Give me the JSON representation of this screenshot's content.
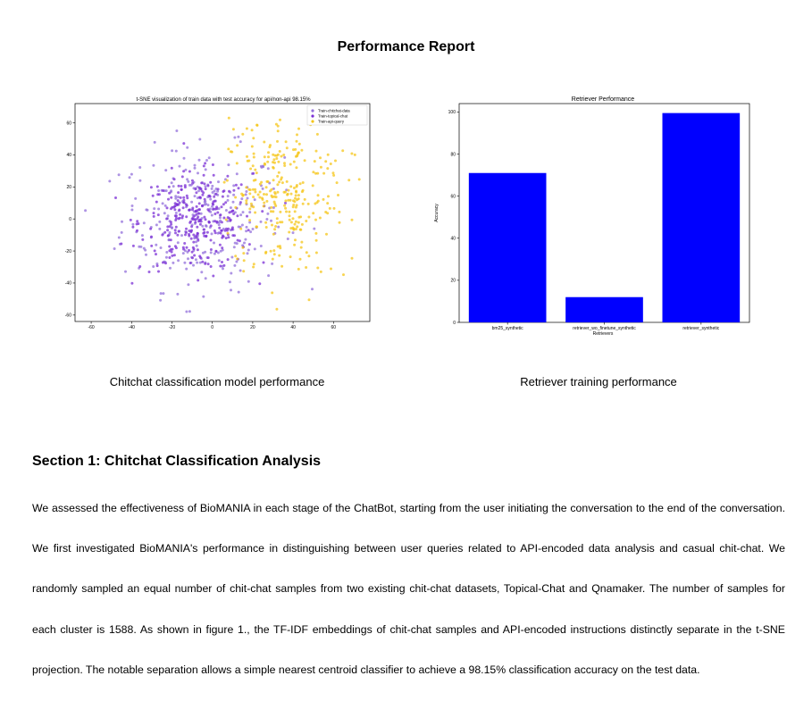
{
  "report": {
    "title": "Performance Report",
    "captions": {
      "left": "Chitchat classification model performance",
      "right": "Retriever training performance"
    },
    "section": {
      "heading": "Section 1: Chitchat Classification Analysis",
      "paragraph": "We assessed the effectiveness of BioMANIA in each stage of the ChatBot, starting from the user initiating the conversation to the end of the conversation. We first investigated BioMANIA's performance in distinguishing between user queries related to API-encoded data analysis and casual chit-chat. We randomly sampled an equal number of chit-chat samples from two existing chit-chat datasets, Topical-Chat and Qnamaker. The number of samples for each cluster is 1588. As shown in figure 1., the TF-IDF embeddings of chit-chat samples and API-encoded instructions distinctly separate in the t-SNE projection. The notable separation allows a simple nearest centroid classifier to achieve a 98.15% classification accuracy on the test data."
    }
  },
  "chart_data": [
    {
      "type": "scatter",
      "title": "t-SNE visualization of train data with test accuracy for api/non-api 98.15%",
      "xlabel": "",
      "ylabel": "",
      "xlim": [
        -68,
        78
      ],
      "ylim": [
        -64,
        72
      ],
      "xticks": [
        -60,
        -40,
        -20,
        0,
        20,
        40,
        60
      ],
      "yticks": [
        -60,
        -40,
        -20,
        0,
        20,
        40,
        60
      ],
      "legend_position": "top-right",
      "series": [
        {
          "name": "Train-chitchat-data",
          "color": "#9370db",
          "center": [
            -5,
            0
          ],
          "spread": [
            20,
            22
          ],
          "approx_points": 300
        },
        {
          "name": "Train-topical-chat",
          "color": "#7b2fd6",
          "center": [
            -8,
            -2
          ],
          "spread": [
            14,
            15
          ],
          "approx_points": 300
        },
        {
          "name": "Train-api-query",
          "color": "#f5c518",
          "center": [
            35,
            15
          ],
          "spread": [
            16,
            25
          ],
          "approx_points": 300
        }
      ]
    },
    {
      "type": "bar",
      "title": "Retriever Performance",
      "xlabel": "Retrievers",
      "ylabel": "Accuracy",
      "ylim": [
        0,
        104
      ],
      "yticks": [
        0,
        20,
        40,
        60,
        80,
        100
      ],
      "categories": [
        "bm25_synthetic",
        "retriever_wo_finetune_synthetic",
        "retriever_synthetic"
      ],
      "values": [
        71,
        12,
        99.5
      ],
      "color": "#0000ff"
    }
  ]
}
